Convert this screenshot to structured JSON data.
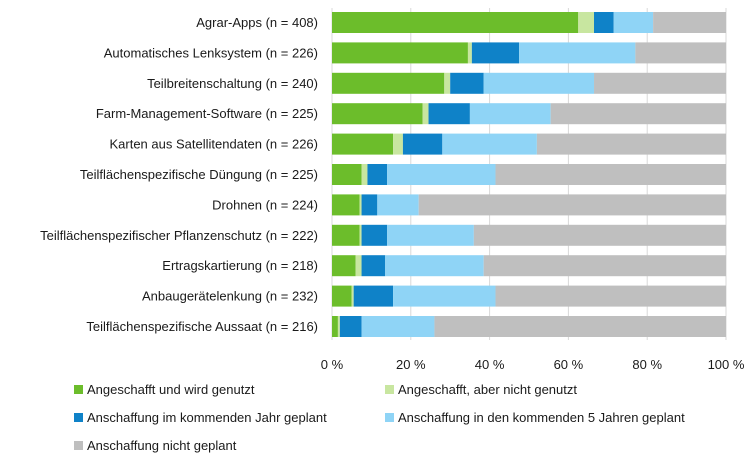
{
  "chart_data": {
    "type": "bar",
    "orientation": "horizontal",
    "stacked": true,
    "title": "",
    "xlabel": "",
    "ylabel": "",
    "xlim": [
      0,
      100
    ],
    "x_ticks": [
      "0 %",
      "20 %",
      "40 %",
      "60 %",
      "80 %",
      "100 %"
    ],
    "grid": true,
    "legend_position": "bottom",
    "categories": [
      "Agrar-Apps (n = 408)",
      "Automatisches Lenksystem (n = 226)",
      "Teilbreitenschaltung (n = 240)",
      "Farm-Management-Software (n = 225)",
      "Karten aus Satellitendaten (n = 226)",
      "Teilflächenspezifische Düngung (n = 225)",
      "Drohnen (n = 224)",
      "Teilflächenspezifischer Pflanzenschutz (n = 222)",
      "Ertragskartierung (n = 218)",
      "Anbaugerätelenkung (n = 232)",
      "Teilflächenspezifische Aussaat (n = 216)"
    ],
    "series": [
      {
        "name": "Angeschafft und wird genutzt",
        "color": "#6cbd2b",
        "values": [
          62.5,
          34.5,
          28.5,
          23,
          15.5,
          7.5,
          7,
          7,
          6,
          5,
          1.5
        ]
      },
      {
        "name": "Angeschafft, aber nicht genutzt",
        "color": "#c8e6a0",
        "values": [
          4,
          1,
          1.5,
          1.5,
          2.5,
          1.5,
          0.5,
          0.5,
          1.5,
          0.5,
          0.5
        ]
      },
      {
        "name": "Anschaffung im kommenden Jahr geplant",
        "color": "#0f82c8",
        "values": [
          5,
          12,
          8.5,
          10.5,
          10,
          5,
          4,
          6.5,
          6,
          10,
          5.5
        ]
      },
      {
        "name": "Anschaffung in den kommenden 5 Jahren geplant",
        "color": "#8fd4f6",
        "values": [
          10,
          29.5,
          28,
          20.5,
          24,
          27.5,
          10.5,
          22,
          25,
          26,
          18.5
        ]
      },
      {
        "name": "Anschaffung nicht geplant",
        "color": "#bfbfbf",
        "values": [
          18.5,
          23,
          33.5,
          44.5,
          48,
          58.5,
          78,
          64,
          61.5,
          58.5,
          74
        ]
      }
    ]
  }
}
